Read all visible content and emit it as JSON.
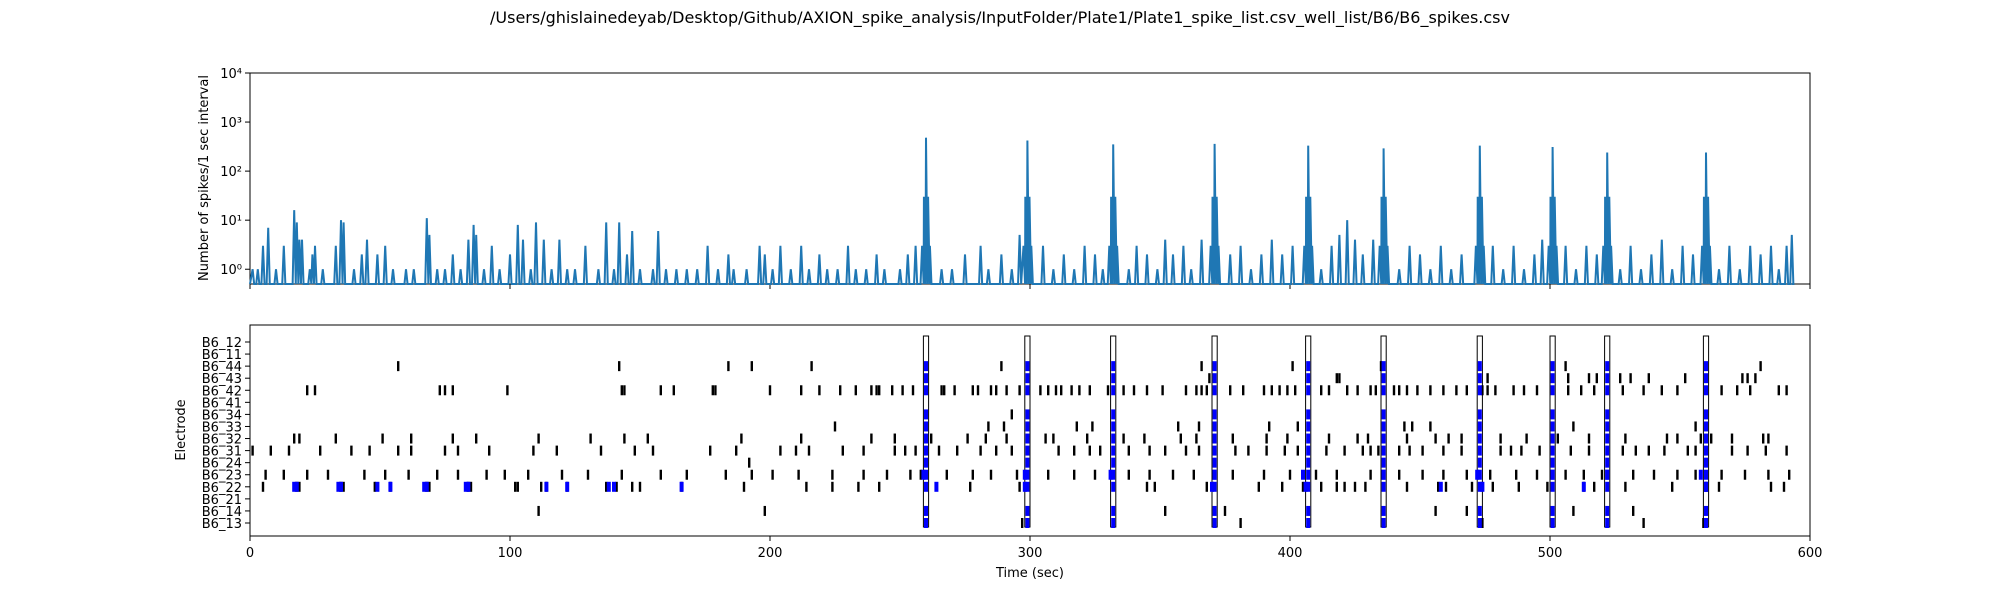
{
  "figure": {
    "title": "/Users/ghislainedeyab/Desktop/Github/AXION_spike_analysis/InputFolder/Plate1/Plate1_spike_list.csv_well_list/B6/B6_spikes.csv"
  },
  "chart_data": [
    {
      "type": "line",
      "ylabel": "Number of spikes/1 sec interval",
      "xlabel": "",
      "yscale": "log",
      "ylim": [
        0.5,
        10000
      ],
      "xlim": [
        0,
        600
      ],
      "yticks": [
        1,
        10,
        100,
        1000,
        10000
      ],
      "ytick_labels": [
        "10⁰",
        "10¹",
        "10²",
        "10³",
        "10⁴"
      ],
      "line_color": "#1f77b4",
      "grid": false,
      "series_peaks": [
        {
          "x": 260,
          "y": 480
        },
        {
          "x": 299,
          "y": 420
        },
        {
          "x": 332,
          "y": 350
        },
        {
          "x": 371,
          "y": 360
        },
        {
          "x": 407,
          "y": 330
        },
        {
          "x": 436,
          "y": 290
        },
        {
          "x": 473,
          "y": 330
        },
        {
          "x": 501,
          "y": 310
        },
        {
          "x": 522,
          "y": 240
        },
        {
          "x": 560,
          "y": 240
        }
      ],
      "series_small": [
        {
          "x": 1,
          "y": 1
        },
        {
          "x": 3,
          "y": 1
        },
        {
          "x": 5,
          "y": 3
        },
        {
          "x": 7,
          "y": 7
        },
        {
          "x": 10,
          "y": 1
        },
        {
          "x": 13,
          "y": 3
        },
        {
          "x": 17,
          "y": 16
        },
        {
          "x": 18,
          "y": 9
        },
        {
          "x": 19,
          "y": 4
        },
        {
          "x": 20,
          "y": 4
        },
        {
          "x": 23,
          "y": 1
        },
        {
          "x": 24,
          "y": 2
        },
        {
          "x": 25,
          "y": 3
        },
        {
          "x": 28,
          "y": 1
        },
        {
          "x": 33,
          "y": 3
        },
        {
          "x": 35,
          "y": 10
        },
        {
          "x": 36,
          "y": 9
        },
        {
          "x": 40,
          "y": 1
        },
        {
          "x": 43,
          "y": 2
        },
        {
          "x": 45,
          "y": 4
        },
        {
          "x": 49,
          "y": 2
        },
        {
          "x": 52,
          "y": 3
        },
        {
          "x": 55,
          "y": 1
        },
        {
          "x": 60,
          "y": 1
        },
        {
          "x": 63,
          "y": 1
        },
        {
          "x": 68,
          "y": 11
        },
        {
          "x": 69,
          "y": 5
        },
        {
          "x": 72,
          "y": 1
        },
        {
          "x": 75,
          "y": 1
        },
        {
          "x": 78,
          "y": 2
        },
        {
          "x": 81,
          "y": 1
        },
        {
          "x": 84,
          "y": 4
        },
        {
          "x": 86,
          "y": 8
        },
        {
          "x": 87,
          "y": 5
        },
        {
          "x": 90,
          "y": 1
        },
        {
          "x": 93,
          "y": 3
        },
        {
          "x": 96,
          "y": 1
        },
        {
          "x": 100,
          "y": 2
        },
        {
          "x": 103,
          "y": 8
        },
        {
          "x": 105,
          "y": 4
        },
        {
          "x": 108,
          "y": 1
        },
        {
          "x": 110,
          "y": 9
        },
        {
          "x": 113,
          "y": 4
        },
        {
          "x": 116,
          "y": 1
        },
        {
          "x": 119,
          "y": 4
        },
        {
          "x": 122,
          "y": 1
        },
        {
          "x": 125,
          "y": 1
        },
        {
          "x": 129,
          "y": 3
        },
        {
          "x": 134,
          "y": 1
        },
        {
          "x": 137,
          "y": 9
        },
        {
          "x": 140,
          "y": 1
        },
        {
          "x": 142,
          "y": 9
        },
        {
          "x": 145,
          "y": 2
        },
        {
          "x": 147,
          "y": 6
        },
        {
          "x": 150,
          "y": 1
        },
        {
          "x": 155,
          "y": 1
        },
        {
          "x": 157,
          "y": 6
        },
        {
          "x": 160,
          "y": 1
        },
        {
          "x": 164,
          "y": 1
        },
        {
          "x": 168,
          "y": 1
        },
        {
          "x": 172,
          "y": 1
        },
        {
          "x": 176,
          "y": 3
        },
        {
          "x": 180,
          "y": 1
        },
        {
          "x": 184,
          "y": 2
        },
        {
          "x": 186,
          "y": 1
        },
        {
          "x": 191,
          "y": 1
        },
        {
          "x": 196,
          "y": 3
        },
        {
          "x": 198,
          "y": 2
        },
        {
          "x": 201,
          "y": 1
        },
        {
          "x": 204,
          "y": 3
        },
        {
          "x": 208,
          "y": 1
        },
        {
          "x": 212,
          "y": 3
        },
        {
          "x": 215,
          "y": 1
        },
        {
          "x": 219,
          "y": 2
        },
        {
          "x": 222,
          "y": 1
        },
        {
          "x": 226,
          "y": 1
        },
        {
          "x": 230,
          "y": 3
        },
        {
          "x": 233,
          "y": 1
        },
        {
          "x": 237,
          "y": 1
        },
        {
          "x": 241,
          "y": 2
        },
        {
          "x": 244,
          "y": 1
        },
        {
          "x": 250,
          "y": 1
        },
        {
          "x": 253,
          "y": 2
        },
        {
          "x": 256,
          "y": 3
        },
        {
          "x": 266,
          "y": 1
        },
        {
          "x": 270,
          "y": 1
        },
        {
          "x": 275,
          "y": 2
        },
        {
          "x": 281,
          "y": 3
        },
        {
          "x": 284,
          "y": 1
        },
        {
          "x": 289,
          "y": 2
        },
        {
          "x": 293,
          "y": 1
        },
        {
          "x": 296,
          "y": 5
        },
        {
          "x": 305,
          "y": 3
        },
        {
          "x": 309,
          "y": 1
        },
        {
          "x": 313,
          "y": 2
        },
        {
          "x": 317,
          "y": 1
        },
        {
          "x": 321,
          "y": 3
        },
        {
          "x": 325,
          "y": 2
        },
        {
          "x": 328,
          "y": 1
        },
        {
          "x": 338,
          "y": 1
        },
        {
          "x": 341,
          "y": 3
        },
        {
          "x": 345,
          "y": 2
        },
        {
          "x": 349,
          "y": 1
        },
        {
          "x": 352,
          "y": 4
        },
        {
          "x": 355,
          "y": 2
        },
        {
          "x": 359,
          "y": 3
        },
        {
          "x": 362,
          "y": 1
        },
        {
          "x": 366,
          "y": 4
        },
        {
          "x": 377,
          "y": 2
        },
        {
          "x": 381,
          "y": 3
        },
        {
          "x": 385,
          "y": 1
        },
        {
          "x": 389,
          "y": 2
        },
        {
          "x": 393,
          "y": 4
        },
        {
          "x": 397,
          "y": 2
        },
        {
          "x": 401,
          "y": 3
        },
        {
          "x": 412,
          "y": 1
        },
        {
          "x": 416,
          "y": 3
        },
        {
          "x": 419,
          "y": 5
        },
        {
          "x": 422,
          "y": 10
        },
        {
          "x": 425,
          "y": 4
        },
        {
          "x": 428,
          "y": 2
        },
        {
          "x": 432,
          "y": 4
        },
        {
          "x": 442,
          "y": 1
        },
        {
          "x": 446,
          "y": 3
        },
        {
          "x": 450,
          "y": 2
        },
        {
          "x": 454,
          "y": 1
        },
        {
          "x": 458,
          "y": 3
        },
        {
          "x": 462,
          "y": 1
        },
        {
          "x": 466,
          "y": 2
        },
        {
          "x": 478,
          "y": 3
        },
        {
          "x": 482,
          "y": 1
        },
        {
          "x": 486,
          "y": 3
        },
        {
          "x": 490,
          "y": 1
        },
        {
          "x": 494,
          "y": 2
        },
        {
          "x": 497,
          "y": 4
        },
        {
          "x": 506,
          "y": 3
        },
        {
          "x": 510,
          "y": 1
        },
        {
          "x": 514,
          "y": 3
        },
        {
          "x": 518,
          "y": 2
        },
        {
          "x": 527,
          "y": 1
        },
        {
          "x": 531,
          "y": 3
        },
        {
          "x": 535,
          "y": 1
        },
        {
          "x": 539,
          "y": 2
        },
        {
          "x": 543,
          "y": 4
        },
        {
          "x": 547,
          "y": 1
        },
        {
          "x": 551,
          "y": 3
        },
        {
          "x": 555,
          "y": 2
        },
        {
          "x": 565,
          "y": 1
        },
        {
          "x": 569,
          "y": 3
        },
        {
          "x": 573,
          "y": 1
        },
        {
          "x": 577,
          "y": 3
        },
        {
          "x": 581,
          "y": 2
        },
        {
          "x": 585,
          "y": 3
        },
        {
          "x": 588,
          "y": 1
        },
        {
          "x": 591,
          "y": 3
        },
        {
          "x": 593,
          "y": 5
        }
      ]
    },
    {
      "type": "scatter",
      "xlabel": "Time (sec)",
      "ylabel": "Electrode",
      "xlim": [
        0,
        600
      ],
      "xticks": [
        0,
        100,
        200,
        300,
        400,
        500,
        600
      ],
      "categories": [
        "B6_13",
        "B6_14",
        "B6_21",
        "B6_22",
        "B6_23",
        "B6_24",
        "B6_31",
        "B6_32",
        "B6_33",
        "B6_34",
        "B6_41",
        "B6_42",
        "B6_43",
        "B6_44",
        "B6_11",
        "B6_12"
      ],
      "spike_color": "#000000",
      "burst_color": "#0000ff",
      "network_bursts": [
        {
          "start": 259,
          "end": 261
        },
        {
          "start": 298,
          "end": 300
        },
        {
          "start": 331,
          "end": 333
        },
        {
          "start": 370,
          "end": 372
        },
        {
          "start": 406,
          "end": 408
        },
        {
          "start": 435,
          "end": 437
        },
        {
          "start": 472,
          "end": 474
        },
        {
          "start": 500,
          "end": 502
        },
        {
          "start": 521,
          "end": 523
        },
        {
          "start": 559,
          "end": 561
        }
      ],
      "spikes": {
        "B6_14": [
          111,
          198,
          352,
          375,
          456,
          468,
          509,
          532
        ],
        "B6_21": [],
        "B6_22": [
          5,
          18,
          19,
          35,
          36,
          48,
          54,
          68,
          69,
          84,
          85,
          102,
          103,
          112,
          114,
          122,
          137,
          141,
          147,
          150,
          166,
          190,
          214,
          224,
          234,
          242,
          277,
          296,
          345,
          348,
          368,
          388,
          397,
          405,
          412,
          418,
          421,
          425,
          429,
          445,
          457,
          460,
          470,
          478,
          488,
          499,
          513,
          517,
          529,
          547,
          560,
          565,
          585,
          590
        ],
        "B6_23": [
          6,
          13,
          22,
          30,
          44,
          52,
          61,
          72,
          80,
          91,
          98,
          107,
          120,
          130,
          143,
          158,
          168,
          183,
          193,
          201,
          211,
          224,
          236,
          245,
          254,
          258,
          268,
          278,
          285,
          295,
          307,
          317,
          325,
          338,
          346,
          355,
          363,
          378,
          390,
          400,
          410,
          418,
          431,
          442,
          451,
          459,
          468,
          477,
          487,
          495,
          506,
          513,
          520,
          532,
          540,
          549,
          556,
          566,
          575,
          584,
          592
        ],
        "B6_24": [
          192
        ],
        "B6_31": [
          1,
          8,
          15,
          27,
          39,
          46,
          57,
          62,
          75,
          80,
          92,
          109,
          118,
          135,
          148,
          155,
          177,
          187,
          204,
          210,
          215,
          228,
          236,
          248,
          252,
          256,
          265,
          272,
          281,
          287,
          293,
          311,
          317,
          323,
          327,
          338,
          346,
          352,
          360,
          365,
          379,
          384,
          391,
          398,
          403,
          414,
          421,
          428,
          431,
          434,
          442,
          446,
          451,
          459,
          466,
          481,
          485,
          489,
          496,
          508,
          515,
          528,
          533,
          538,
          544,
          553,
          556,
          570,
          576,
          583,
          591
        ],
        "B6_32": [
          17,
          19,
          33,
          51,
          62,
          78,
          87,
          111,
          131,
          144,
          153,
          189,
          212,
          239,
          248,
          262,
          276,
          283,
          291,
          306,
          309,
          322,
          336,
          344,
          358,
          364,
          378,
          391,
          399,
          415,
          426,
          430,
          445,
          456,
          461,
          466,
          481,
          491,
          503,
          515,
          529,
          545,
          549,
          558,
          562,
          570,
          582,
          584
        ],
        "B6_33": [
          225,
          284,
          290,
          318,
          324,
          357,
          365,
          392,
          403,
          444,
          447,
          454,
          509,
          556
        ],
        "B6_34": [
          293
        ],
        "B6_41": [],
        "B6_42": [
          22,
          25,
          73,
          75,
          78,
          99,
          143,
          144,
          158,
          163,
          178,
          179,
          200,
          212,
          219,
          227,
          233,
          239,
          241,
          242,
          247,
          251,
          255,
          266,
          267,
          271,
          278,
          280,
          285,
          287,
          291,
          296,
          304,
          307,
          310,
          312,
          316,
          319,
          323,
          330,
          336,
          340,
          345,
          351,
          360,
          364,
          366,
          368,
          377,
          382,
          390,
          393,
          396,
          399,
          402,
          412,
          415,
          422,
          426,
          431,
          433,
          440,
          442,
          445,
          449,
          454,
          459,
          464,
          468,
          474,
          476,
          479,
          486,
          490,
          495,
          507,
          512,
          517,
          528,
          536,
          543,
          549,
          566,
          572,
          577,
          588,
          591
        ],
        "B6_43": [
          369,
          418,
          419,
          476,
          507,
          515,
          518,
          527,
          531,
          538,
          552,
          574,
          576,
          579
        ],
        "B6_44": [
          57,
          142,
          184,
          193,
          216,
          289,
          366,
          401,
          435,
          506,
          581
        ],
        "B6_11": [],
        "B6_12": [],
        "B6_13": [
          297,
          332,
          371,
          381,
          474,
          536,
          559
        ]
      },
      "burst_spikes": {
        "B6_22": [
          17,
          18,
          34,
          35,
          49,
          54,
          67,
          68,
          83,
          84,
          114,
          122,
          138,
          140,
          166,
          264,
          298,
          370,
          406,
          458,
          474,
          513,
          560
        ],
        "B6_23": [
          259,
          298,
          331,
          371,
          405,
          436,
          472,
          501,
          522,
          558
        ]
      }
    }
  ]
}
